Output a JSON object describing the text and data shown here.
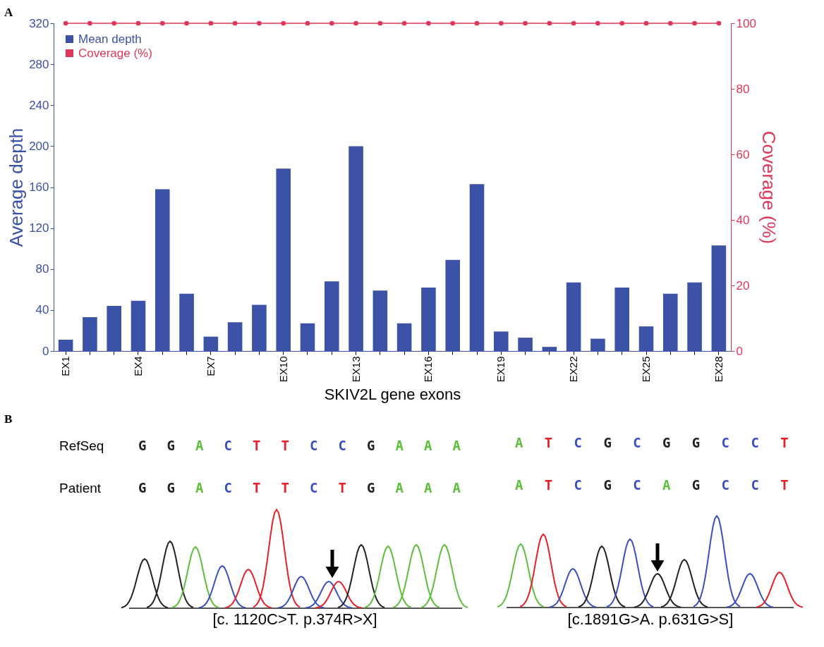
{
  "chart_data": [
    {
      "type": "bar",
      "xlabel": "SKIV2L gene exons",
      "ylabel": "Average depth",
      "y2label": "Coverage (%)",
      "annotations": [
        "A"
      ],
      "categories": [
        "EX1",
        null,
        null,
        "EX4",
        null,
        null,
        "EX7",
        null,
        null,
        "EX10",
        null,
        null,
        "EX13",
        null,
        null,
        "EX16",
        null,
        null,
        "EX19",
        null,
        null,
        "EX22",
        null,
        null,
        "EX25",
        null,
        null,
        "EX28"
      ],
      "series": [
        {
          "name": "Mean depth",
          "color": "#3b52a6",
          "values": [
            11,
            33,
            44,
            49,
            158,
            56,
            14,
            28,
            45,
            178,
            27,
            68,
            200,
            59,
            27,
            62,
            89,
            163,
            19,
            13,
            4,
            67,
            12,
            62,
            24,
            56,
            67,
            103
          ]
        },
        {
          "name": "Coverage (%)",
          "type": "line",
          "axis": "y2",
          "color": "#e0365a",
          "values": [
            100,
            100,
            100,
            100,
            100,
            100,
            100,
            100,
            100,
            100,
            100,
            100,
            100,
            100,
            100,
            100,
            100,
            100,
            100,
            100,
            100,
            100,
            100,
            100,
            100,
            100,
            100,
            100
          ]
        }
      ],
      "ylim": [
        0,
        320
      ],
      "yticks": [
        0,
        40,
        80,
        120,
        160,
        200,
        240,
        280,
        320
      ],
      "y2lim": [
        0,
        100
      ],
      "y2ticks": [
        0,
        20,
        40,
        60,
        80,
        100
      ],
      "grid": false,
      "legend": "top left",
      "marker": "circle"
    },
    {
      "type": "other",
      "annotations": [
        "B",
        "RefSeq",
        "Patient",
        "G G A C T T C C G A A A",
        "G G A C T T C T G A A A",
        "A T C G C G G C C T",
        "A T C G C A G C C T",
        "[c. 1120C>T. p.374R>X]",
        "[c.1891G>A. p.631G>S]"
      ]
    }
  ]
}
